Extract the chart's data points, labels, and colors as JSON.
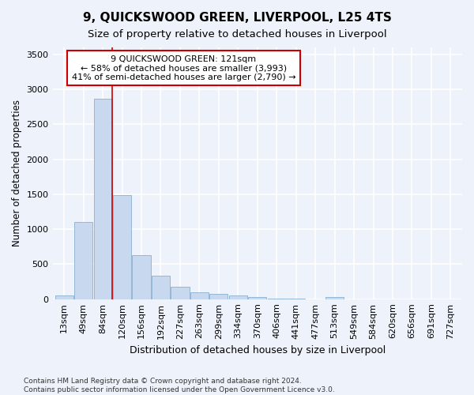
{
  "title": "9, QUICKSWOOD GREEN, LIVERPOOL, L25 4TS",
  "subtitle": "Size of property relative to detached houses in Liverpool",
  "xlabel": "Distribution of detached houses by size in Liverpool",
  "ylabel": "Number of detached properties",
  "footer_line1": "Contains HM Land Registry data © Crown copyright and database right 2024.",
  "footer_line2": "Contains public sector information licensed under the Open Government Licence v3.0.",
  "categories": [
    "13sqm",
    "49sqm",
    "84sqm",
    "120sqm",
    "156sqm",
    "192sqm",
    "227sqm",
    "263sqm",
    "299sqm",
    "334sqm",
    "370sqm",
    "406sqm",
    "441sqm",
    "477sqm",
    "513sqm",
    "549sqm",
    "584sqm",
    "620sqm",
    "656sqm",
    "691sqm",
    "727sqm"
  ],
  "values": [
    55,
    1100,
    2870,
    1490,
    630,
    340,
    175,
    100,
    80,
    55,
    30,
    10,
    5,
    0,
    30,
    0,
    0,
    0,
    0,
    0,
    0
  ],
  "bar_color": "#c8d8ee",
  "bar_edge_color": "#8ab0d0",
  "property_line_bin": 3,
  "annotation_text_line1": "9 QUICKSWOOD GREEN: 121sqm",
  "annotation_text_line2": "← 58% of detached houses are smaller (3,993)",
  "annotation_text_line3": "41% of semi-detached houses are larger (2,790) →",
  "annotation_box_color": "#ffffff",
  "annotation_box_edge_color": "#cc0000",
  "vline_color": "#cc0000",
  "ylim": [
    0,
    3600
  ],
  "yticks": [
    0,
    500,
    1000,
    1500,
    2000,
    2500,
    3000,
    3500
  ],
  "bg_color": "#eef2fa",
  "axes_bg_color": "#eef2fa",
  "grid_color": "#ffffff",
  "title_fontsize": 11,
  "subtitle_fontsize": 9.5,
  "xlabel_fontsize": 9,
  "ylabel_fontsize": 8.5,
  "annotation_fontsize": 8,
  "tick_fontsize": 8,
  "footer_fontsize": 6.5
}
